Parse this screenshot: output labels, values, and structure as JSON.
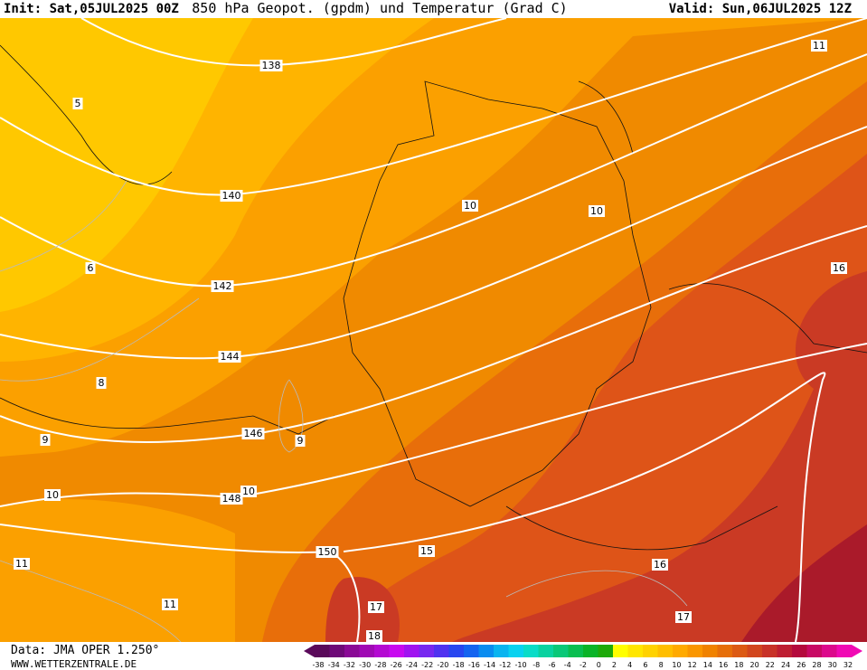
{
  "header": {
    "init": "Init: Sat,05JUL2025 00Z",
    "title": "850 hPa Geopot. (gpdm) und Temperatur (Grad C)",
    "valid": "Valid: Sun,06JUL2025 12Z"
  },
  "geopotential_labels": [
    "138",
    "140",
    "142",
    "144",
    "146",
    "148",
    "150"
  ],
  "temperature_labels": [
    "5",
    "6",
    "8",
    "9",
    "9",
    "10",
    "10",
    "10",
    "10",
    "11",
    "11",
    "11",
    "15",
    "16",
    "16",
    "17",
    "17",
    "18"
  ],
  "colorbar": {
    "labels": [
      "-38",
      "-34",
      "-32",
      "-30",
      "-28",
      "-26",
      "-24",
      "-22",
      "-20",
      "-18",
      "-16",
      "-14",
      "-12",
      "-10",
      "-8",
      "-6",
      "-4",
      "-2",
      "0",
      "2",
      "4",
      "6",
      "8",
      "10",
      "12",
      "14",
      "16",
      "18",
      "20",
      "22",
      "24",
      "26",
      "28",
      "30",
      "32"
    ]
  },
  "footer": {
    "data": "Data: JMA OPER 1.250°",
    "url": "WWW.WETTERZENTRALE.DE"
  }
}
